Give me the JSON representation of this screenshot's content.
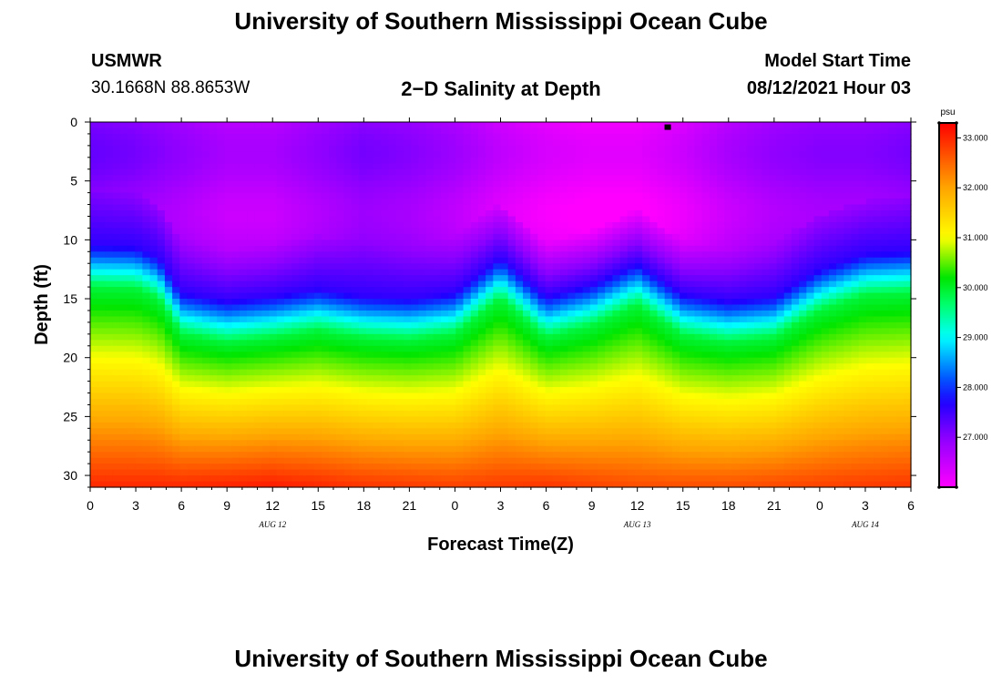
{
  "header": {
    "title": "University of Southern Mississippi Ocean Cube",
    "station": "USMWR",
    "coords": "30.1668N  88.8653W",
    "subtitle": "2−D Salinity at Depth",
    "model_start_label": "Model Start Time",
    "model_start_value": "08/12/2021 Hour 03"
  },
  "footer": {
    "title": "University of Southern Mississippi Ocean Cube"
  },
  "chart_data": {
    "type": "heatmap",
    "title": "2-D Salinity at Depth",
    "xlabel": "Forecast Time(Z)",
    "ylabel": "Depth (ft)",
    "x_range_hours": [
      0,
      54
    ],
    "y_range": [
      0,
      31
    ],
    "x_ticks": [
      "0",
      "3",
      "6",
      "9",
      "12",
      "15",
      "18",
      "21",
      "0",
      "3",
      "6",
      "9",
      "12",
      "15",
      "18",
      "21",
      "0",
      "3",
      "6"
    ],
    "x_tick_hours": [
      0,
      3,
      6,
      9,
      12,
      15,
      18,
      21,
      24,
      27,
      30,
      33,
      36,
      39,
      42,
      45,
      48,
      51,
      54
    ],
    "date_labels": [
      {
        "text": "AUG 12",
        "hour": 12
      },
      {
        "text": "AUG 13",
        "hour": 36
      },
      {
        "text": "AUG 14",
        "hour": 51
      }
    ],
    "y_ticks": [
      "0",
      "5",
      "10",
      "15",
      "20",
      "25",
      "30"
    ],
    "y_tick_values": [
      0,
      5,
      10,
      15,
      20,
      25,
      30
    ],
    "colorbar": {
      "units": "psu",
      "min": 26.0,
      "max": 33.3,
      "ticks": [
        "33.000",
        "32.000",
        "31.000",
        "30.000",
        "29.000",
        "28.000",
        "27.000"
      ],
      "tick_values": [
        33,
        32,
        31,
        30,
        29,
        28,
        27
      ]
    },
    "marker": {
      "hour": 38,
      "depth": 0.2
    },
    "halocline_depth_ft": {
      "hours": [
        0,
        3,
        4.5,
        6,
        9,
        12,
        15,
        18,
        21,
        24,
        27,
        30,
        33,
        36,
        39,
        42,
        45,
        48,
        51,
        54
      ],
      "depth": [
        10.5,
        10.6,
        11.5,
        14.5,
        15.2,
        14.8,
        14.2,
        14.8,
        15.0,
        14.5,
        11.5,
        14.8,
        13.8,
        12.0,
        14.6,
        15.2,
        14.8,
        12.5,
        11.2,
        11.0
      ]
    },
    "surface_salinity_psu": {
      "hours": [
        0,
        3,
        6,
        9,
        12,
        15,
        18,
        21,
        24,
        27,
        30,
        33,
        36,
        39,
        42,
        45,
        48,
        51,
        54
      ],
      "values": [
        27.1,
        27.0,
        26.8,
        26.6,
        26.6,
        26.8,
        27.0,
        26.9,
        26.7,
        26.4,
        26.2,
        26.1,
        26.1,
        26.3,
        26.6,
        26.8,
        26.9,
        26.9,
        27.0
      ]
    },
    "bottom_salinity_psu": {
      "hours": [
        0,
        6,
        12,
        18,
        24,
        30,
        36,
        42,
        48,
        54
      ],
      "values": [
        33.0,
        33.0,
        33.1,
        32.9,
        32.8,
        32.9,
        32.7,
        32.7,
        32.8,
        32.9
      ]
    }
  }
}
